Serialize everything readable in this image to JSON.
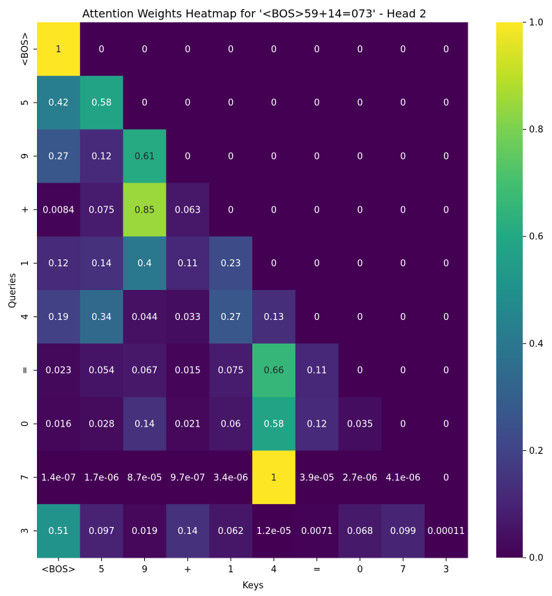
{
  "chart_data": {
    "type": "heatmap",
    "title": "Attention Weights Heatmap for '<BOS>59+14=073' - Head 2",
    "xlabel": "Keys",
    "ylabel": "Queries",
    "x_labels": [
      "<BOS>",
      "5",
      "9",
      "+",
      "1",
      "4",
      "=",
      "0",
      "7",
      "3"
    ],
    "y_labels": [
      "<BOS>",
      "5",
      "9",
      "+",
      "1",
      "4",
      "=",
      "0",
      "7",
      "3"
    ],
    "values": [
      [
        1,
        0,
        0,
        0,
        0,
        0,
        0,
        0,
        0,
        0
      ],
      [
        0.42,
        0.58,
        0,
        0,
        0,
        0,
        0,
        0,
        0,
        0
      ],
      [
        0.27,
        0.12,
        0.61,
        0,
        0,
        0,
        0,
        0,
        0,
        0
      ],
      [
        0.0084,
        0.075,
        0.85,
        0.063,
        0,
        0,
        0,
        0,
        0,
        0
      ],
      [
        0.12,
        0.14,
        0.4,
        0.11,
        0.23,
        0,
        0,
        0,
        0,
        0
      ],
      [
        0.19,
        0.34,
        0.044,
        0.033,
        0.27,
        0.13,
        0,
        0,
        0,
        0
      ],
      [
        0.023,
        0.054,
        0.067,
        0.015,
        0.075,
        0.66,
        0.11,
        0,
        0,
        0
      ],
      [
        0.016,
        0.028,
        0.14,
        0.021,
        0.06,
        0.58,
        0.12,
        0.035,
        0,
        0
      ],
      [
        1.4e-07,
        1.7e-06,
        8.7e-05,
        9.7e-07,
        3.4e-06,
        1,
        3.9e-05,
        2.7e-06,
        4.1e-06,
        0
      ],
      [
        0.51,
        0.097,
        0.019,
        0.14,
        0.062,
        1.2e-05,
        0.0071,
        0.068,
        0.099,
        0.00011
      ]
    ],
    "cell_labels": [
      [
        "1",
        "0",
        "0",
        "0",
        "0",
        "0",
        "0",
        "0",
        "0",
        "0"
      ],
      [
        "0.42",
        "0.58",
        "0",
        "0",
        "0",
        "0",
        "0",
        "0",
        "0",
        "0"
      ],
      [
        "0.27",
        "0.12",
        "0.61",
        "0",
        "0",
        "0",
        "0",
        "0",
        "0",
        "0"
      ],
      [
        "0.0084",
        "0.075",
        "0.85",
        "0.063",
        "0",
        "0",
        "0",
        "0",
        "0",
        "0"
      ],
      [
        "0.12",
        "0.14",
        "0.4",
        "0.11",
        "0.23",
        "0",
        "0",
        "0",
        "0",
        "0"
      ],
      [
        "0.19",
        "0.34",
        "0.044",
        "0.033",
        "0.27",
        "0.13",
        "0",
        "0",
        "0",
        "0"
      ],
      [
        "0.023",
        "0.054",
        "0.067",
        "0.015",
        "0.075",
        "0.66",
        "0.11",
        "0",
        "0",
        "0"
      ],
      [
        "0.016",
        "0.028",
        "0.14",
        "0.021",
        "0.06",
        "0.58",
        "0.12",
        "0.035",
        "0",
        "0"
      ],
      [
        "1.4e-07",
        "1.7e-06",
        "8.7e-05",
        "9.7e-07",
        "3.4e-06",
        "1",
        "3.9e-05",
        "2.7e-06",
        "4.1e-06",
        "0"
      ],
      [
        "0.51",
        "0.097",
        "0.019",
        "0.14",
        "0.062",
        "1.2e-05",
        "0.0071",
        "0.068",
        "0.099",
        "0.00011"
      ]
    ],
    "colormap": "viridis",
    "vmin": 0,
    "vmax": 1,
    "colorbar_ticks": [
      "0.0",
      "0.2",
      "0.4",
      "0.6",
      "0.8",
      "1.0"
    ],
    "colorbar_tick_values": [
      0,
      0.2,
      0.4,
      0.6,
      0.8,
      1.0
    ],
    "annotation_color_light": "#ffffff",
    "annotation_color_dark": "#262626"
  }
}
